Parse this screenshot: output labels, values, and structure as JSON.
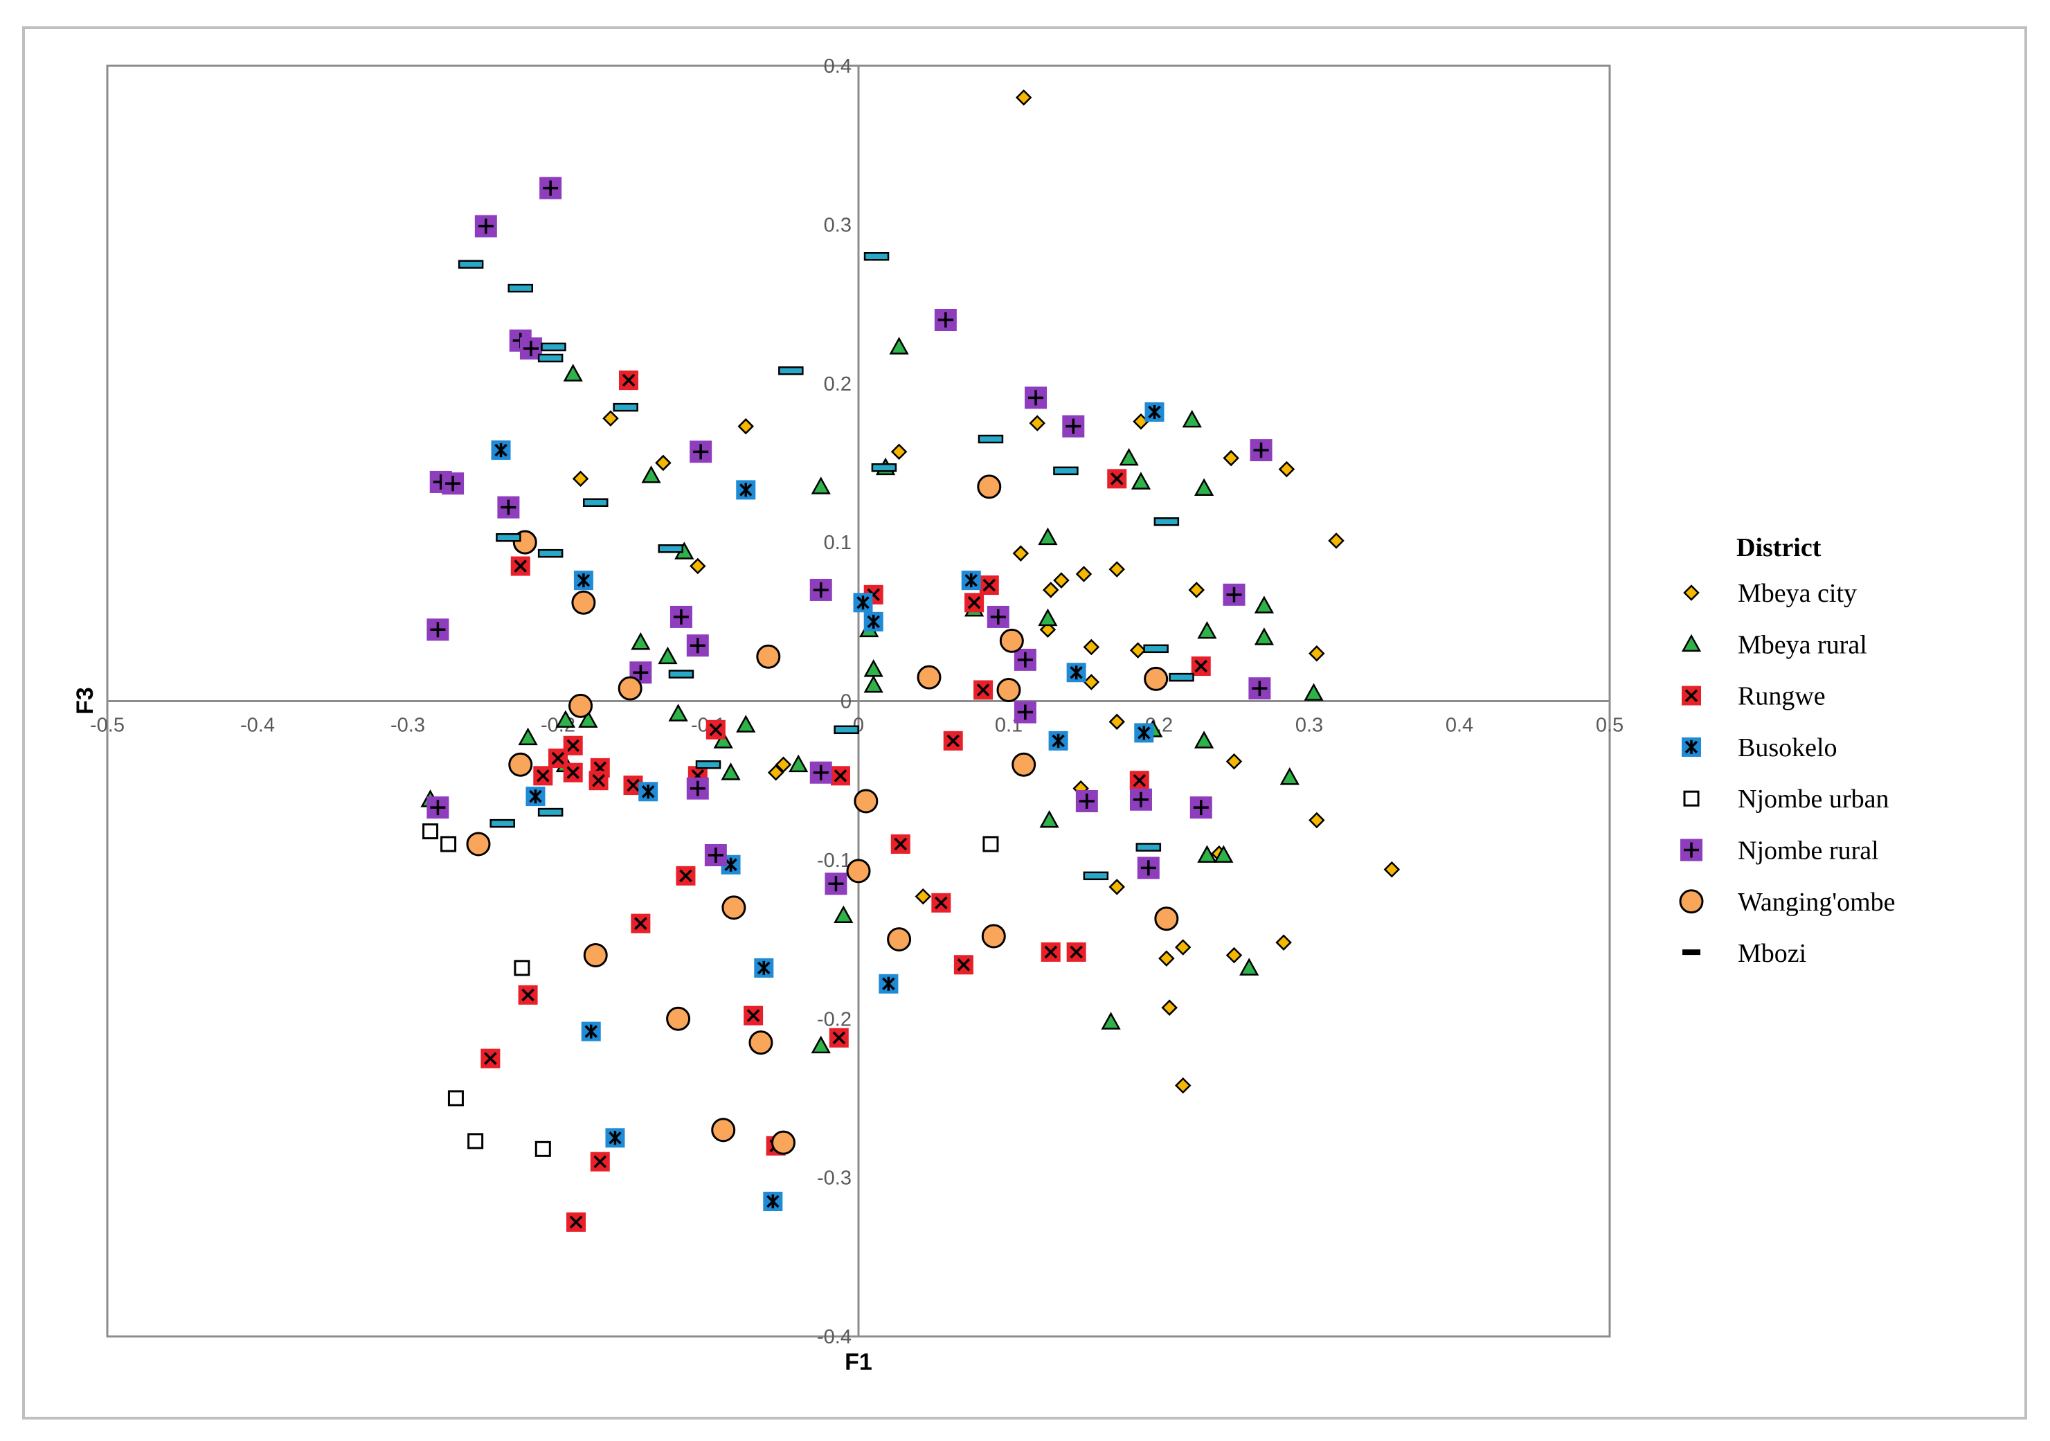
{
  "chart_data": {
    "type": "scatter",
    "xlabel": "F1",
    "ylabel": "F3",
    "xlim": [
      -0.5,
      0.5
    ],
    "ylim": [
      -0.4,
      0.4
    ],
    "x_ticks": [
      "-0.5",
      "-0.4",
      "-0.3",
      "-0.2",
      "-0.1",
      "0",
      "0.1",
      "0.2",
      "0.3",
      "0.4",
      "0.5"
    ],
    "y_ticks": [
      "0.4",
      "0.3",
      "0.2",
      "0.1",
      "0",
      "-0.1",
      "-0.2",
      "-0.3",
      "-0.4"
    ],
    "grid": false,
    "legend": {
      "title": "District",
      "placement": "right"
    },
    "series": [
      {
        "name": "Mbeya city",
        "marker": "diamond",
        "color": "#f5b700",
        "points": [
          [
            0.11,
            0.38
          ],
          [
            -0.165,
            0.178
          ],
          [
            -0.075,
            0.173
          ],
          [
            0.119,
            0.175
          ],
          [
            0.188,
            0.176
          ],
          [
            0.027,
            0.157
          ],
          [
            -0.13,
            0.15
          ],
          [
            -0.185,
            0.14
          ],
          [
            0.248,
            0.153
          ],
          [
            0.285,
            0.146
          ],
          [
            0.318,
            0.101
          ],
          [
            0.108,
            0.093
          ],
          [
            -0.107,
            0.085
          ],
          [
            0.128,
            0.07
          ],
          [
            0.135,
            0.076
          ],
          [
            0.15,
            0.08
          ],
          [
            0.172,
            0.083
          ],
          [
            0.225,
            0.07
          ],
          [
            0.126,
            0.045
          ],
          [
            0.155,
            0.034
          ],
          [
            0.186,
            0.032
          ],
          [
            0.305,
            0.03
          ],
          [
            0.155,
            0.012
          ],
          [
            0.172,
            -0.013
          ],
          [
            0.25,
            -0.038
          ],
          [
            -0.055,
            -0.045
          ],
          [
            -0.05,
            -0.04
          ],
          [
            0.148,
            -0.055
          ],
          [
            0.305,
            -0.075
          ],
          [
            0.355,
            -0.106
          ],
          [
            0.043,
            -0.123
          ],
          [
            0.172,
            -0.117
          ],
          [
            0.24,
            -0.096
          ],
          [
            0.205,
            -0.162
          ],
          [
            0.216,
            -0.155
          ],
          [
            0.25,
            -0.16
          ],
          [
            0.283,
            -0.152
          ],
          [
            0.207,
            -0.193
          ],
          [
            0.216,
            -0.242
          ]
        ]
      },
      {
        "name": "Mbeya rural",
        "marker": "triangle",
        "color": "#2eb34a",
        "points": [
          [
            0.027,
            0.223
          ],
          [
            -0.19,
            0.206
          ],
          [
            -0.138,
            0.142
          ],
          [
            -0.025,
            0.135
          ],
          [
            0.018,
            0.147
          ],
          [
            0.18,
            0.153
          ],
          [
            0.188,
            0.138
          ],
          [
            0.222,
            0.177
          ],
          [
            0.23,
            0.134
          ],
          [
            0.126,
            0.103
          ],
          [
            -0.116,
            0.094
          ],
          [
            0.077,
            0.058
          ],
          [
            0.126,
            0.052
          ],
          [
            0.232,
            0.044
          ],
          [
            0.27,
            0.06
          ],
          [
            0.27,
            0.04
          ],
          [
            -0.145,
            0.037
          ],
          [
            -0.127,
            0.028
          ],
          [
            0.01,
            0.02
          ],
          [
            0.007,
            0.045
          ],
          [
            0.01,
            0.01
          ],
          [
            0.303,
            0.005
          ],
          [
            -0.12,
            -0.008
          ],
          [
            -0.195,
            -0.012
          ],
          [
            -0.18,
            -0.012
          ],
          [
            -0.075,
            -0.015
          ],
          [
            -0.09,
            -0.025
          ],
          [
            -0.22,
            -0.023
          ],
          [
            -0.195,
            -0.04
          ],
          [
            0.23,
            -0.025
          ],
          [
            -0.04,
            -0.04
          ],
          [
            -0.085,
            -0.045
          ],
          [
            0.287,
            -0.048
          ],
          [
            -0.285,
            -0.062
          ],
          [
            0.127,
            -0.075
          ],
          [
            0.232,
            -0.097
          ],
          [
            0.243,
            -0.097
          ],
          [
            -0.01,
            -0.135
          ],
          [
            0.26,
            -0.168
          ],
          [
            0.168,
            -0.202
          ],
          [
            -0.025,
            -0.217
          ],
          [
            0.196,
            -0.018
          ]
        ]
      },
      {
        "name": "Rungwe",
        "marker": "square-x",
        "color": "#e8202a",
        "points": [
          [
            -0.153,
            0.202
          ],
          [
            0.172,
            0.14
          ],
          [
            -0.225,
            0.085
          ],
          [
            0.01,
            0.067
          ],
          [
            0.087,
            0.073
          ],
          [
            0.077,
            0.062
          ],
          [
            0.083,
            0.007
          ],
          [
            0.228,
            0.022
          ],
          [
            -0.095,
            -0.018
          ],
          [
            0.063,
            -0.025
          ],
          [
            -0.19,
            -0.028
          ],
          [
            -0.2,
            -0.036
          ],
          [
            -0.172,
            -0.042
          ],
          [
            -0.19,
            -0.045
          ],
          [
            -0.173,
            -0.05
          ],
          [
            -0.21,
            -0.047
          ],
          [
            -0.15,
            -0.053
          ],
          [
            -0.107,
            -0.047
          ],
          [
            -0.012,
            -0.047
          ],
          [
            0.187,
            -0.05
          ],
          [
            0.028,
            -0.09
          ],
          [
            -0.115,
            -0.11
          ],
          [
            0.055,
            -0.127
          ],
          [
            -0.145,
            -0.14
          ],
          [
            0.07,
            -0.166
          ],
          [
            0.128,
            -0.158
          ],
          [
            0.145,
            -0.158
          ],
          [
            -0.22,
            -0.185
          ],
          [
            -0.07,
            -0.198
          ],
          [
            -0.013,
            -0.212
          ],
          [
            -0.245,
            -0.225
          ],
          [
            -0.055,
            -0.28
          ],
          [
            -0.172,
            -0.29
          ],
          [
            -0.188,
            -0.328
          ]
        ]
      },
      {
        "name": "Busokelo",
        "marker": "square-asterisk",
        "color": "#1f8ad6",
        "points": [
          [
            0.197,
            0.182
          ],
          [
            -0.238,
            0.158
          ],
          [
            -0.075,
            0.133
          ],
          [
            -0.183,
            0.076
          ],
          [
            0.075,
            0.076
          ],
          [
            0.003,
            0.062
          ],
          [
            0.01,
            0.05
          ],
          [
            0.145,
            0.018
          ],
          [
            0.133,
            -0.025
          ],
          [
            0.19,
            -0.02
          ],
          [
            -0.215,
            -0.06
          ],
          [
            -0.14,
            -0.057
          ],
          [
            -0.085,
            -0.103
          ],
          [
            -0.063,
            -0.168
          ],
          [
            0.02,
            -0.178
          ],
          [
            -0.178,
            -0.208
          ],
          [
            -0.162,
            -0.275
          ],
          [
            -0.057,
            -0.315
          ]
        ]
      },
      {
        "name": "Njombe urban",
        "marker": "square-open",
        "color": "#ffffff",
        "points": [
          [
            -0.285,
            -0.082
          ],
          [
            -0.273,
            -0.09
          ],
          [
            -0.224,
            -0.168
          ],
          [
            -0.268,
            -0.25
          ],
          [
            -0.255,
            -0.277
          ],
          [
            -0.21,
            -0.282
          ],
          [
            0.088,
            -0.09
          ]
        ]
      },
      {
        "name": "Njombe rural",
        "marker": "square-plus",
        "color": "#8e3dbd",
        "points": [
          [
            -0.205,
            0.323
          ],
          [
            -0.248,
            0.299
          ],
          [
            0.058,
            0.24
          ],
          [
            -0.225,
            0.227
          ],
          [
            -0.218,
            0.222
          ],
          [
            0.118,
            0.191
          ],
          [
            0.143,
            0.173
          ],
          [
            -0.105,
            0.157
          ],
          [
            0.268,
            0.158
          ],
          [
            -0.278,
            0.138
          ],
          [
            -0.27,
            0.137
          ],
          [
            -0.233,
            0.122
          ],
          [
            -0.025,
            0.07
          ],
          [
            0.25,
            0.067
          ],
          [
            -0.118,
            0.053
          ],
          [
            0.093,
            0.053
          ],
          [
            -0.107,
            0.035
          ],
          [
            0.111,
            0.026
          ],
          [
            -0.145,
            0.018
          ],
          [
            0.267,
            0.008
          ],
          [
            0.111,
            -0.007
          ],
          [
            -0.025,
            -0.045
          ],
          [
            -0.107,
            -0.055
          ],
          [
            0.152,
            -0.063
          ],
          [
            0.188,
            -0.062
          ],
          [
            0.228,
            -0.067
          ],
          [
            -0.28,
            -0.067
          ],
          [
            -0.095,
            -0.097
          ],
          [
            0.193,
            -0.105
          ],
          [
            -0.015,
            -0.115
          ],
          [
            -0.28,
            0.045
          ]
        ]
      },
      {
        "name": "Wanging'ombe",
        "marker": "circle",
        "color": "#f9a65a",
        "points": [
          [
            0.087,
            0.135
          ],
          [
            -0.222,
            0.1
          ],
          [
            -0.183,
            0.062
          ],
          [
            0.102,
            0.038
          ],
          [
            -0.06,
            0.028
          ],
          [
            0.047,
            0.015
          ],
          [
            0.198,
            0.014
          ],
          [
            -0.152,
            0.008
          ],
          [
            0.1,
            0.007
          ],
          [
            -0.185,
            -0.003
          ],
          [
            -0.225,
            -0.04
          ],
          [
            0.11,
            -0.04
          ],
          [
            0.005,
            -0.063
          ],
          [
            -0.253,
            -0.09
          ],
          [
            0.0,
            -0.107
          ],
          [
            -0.083,
            -0.13
          ],
          [
            0.205,
            -0.137
          ],
          [
            -0.175,
            -0.16
          ],
          [
            0.027,
            -0.15
          ],
          [
            0.09,
            -0.148
          ],
          [
            -0.12,
            -0.2
          ],
          [
            -0.065,
            -0.215
          ],
          [
            -0.09,
            -0.27
          ],
          [
            -0.05,
            -0.278
          ]
        ]
      },
      {
        "name": "Mbozi",
        "marker": "dash",
        "color": "#29a9c9",
        "points": [
          [
            0.012,
            0.28
          ],
          [
            -0.258,
            0.275
          ],
          [
            -0.225,
            0.26
          ],
          [
            -0.203,
            0.223
          ],
          [
            -0.205,
            0.216
          ],
          [
            -0.045,
            0.208
          ],
          [
            -0.155,
            0.185
          ],
          [
            0.088,
            0.165
          ],
          [
            0.017,
            0.147
          ],
          [
            0.138,
            0.145
          ],
          [
            -0.175,
            0.125
          ],
          [
            0.205,
            0.113
          ],
          [
            -0.233,
            0.103
          ],
          [
            -0.205,
            0.093
          ],
          [
            -0.125,
            0.096
          ],
          [
            0.198,
            0.033
          ],
          [
            -0.118,
            0.017
          ],
          [
            0.215,
            0.015
          ],
          [
            -0.008,
            -0.018
          ],
          [
            -0.1,
            -0.04
          ],
          [
            -0.237,
            -0.077
          ],
          [
            -0.205,
            -0.07
          ],
          [
            0.158,
            -0.11
          ],
          [
            0.193,
            -0.092
          ]
        ]
      }
    ]
  }
}
